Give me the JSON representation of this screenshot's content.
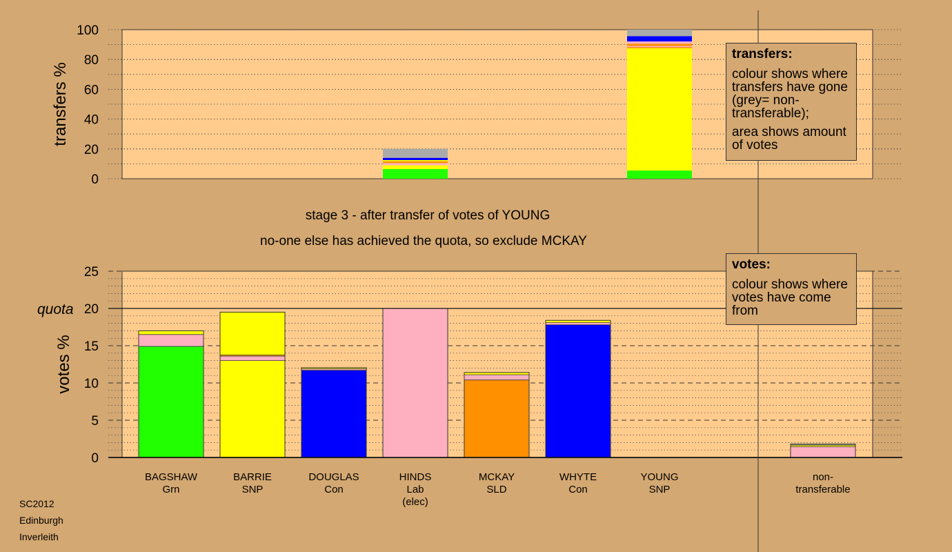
{
  "chart_data": [
    {
      "type": "bar",
      "stacked": true,
      "ylabel": "transfers %",
      "ylim": [
        0,
        100
      ],
      "yticks": [
        0,
        20,
        40,
        60,
        80,
        100
      ],
      "grid": "dotted",
      "colors": {
        "Grn": "#22ff00",
        "SNP": "#ffff00",
        "Con": "#0000ff",
        "Lab": "#ffb0c0",
        "SLD": "#ff9000",
        "non-transferable": "#aaaaaa"
      },
      "bars": [
        {
          "candidate": "HINDS",
          "segments": [
            {
              "party": "Grn",
              "value": 6.5
            },
            {
              "party": "SNP",
              "value": 2.5
            },
            {
              "party": "Lab",
              "value": 1.5
            },
            {
              "party": "SLD",
              "value": 1.2
            },
            {
              "party": "SNP",
              "value": 0.8
            },
            {
              "party": "Con",
              "value": 1.5
            },
            {
              "party": "non-transferable",
              "value": 6.0
            }
          ]
        },
        {
          "candidate": "YOUNG",
          "segments": [
            {
              "party": "Grn",
              "value": 5.5
            },
            {
              "party": "SNP",
              "value": 82.0
            },
            {
              "party": "SLD",
              "value": 0.8
            },
            {
              "party": "Lab",
              "value": 0.8
            },
            {
              "party": "SLD",
              "value": 1.5
            },
            {
              "party": "Lab",
              "value": 1.5
            },
            {
              "party": "Con",
              "value": 3.5
            },
            {
              "party": "non-transferable",
              "value": 4.4
            }
          ]
        }
      ]
    },
    {
      "type": "bar",
      "stacked": true,
      "ylabel": "votes %",
      "ylim": [
        0,
        25
      ],
      "yticks": [
        0,
        5,
        10,
        15,
        20,
        25
      ],
      "quota": 20,
      "quota_label": "quota",
      "grid": "dashed",
      "candidates": [
        {
          "name": "BAGSHAW",
          "party": "Grn",
          "segments": [
            {
              "party": "Grn",
              "value": 14.9
            },
            {
              "party": "Lab",
              "value": 1.6
            },
            {
              "party": "SNP",
              "value": 0.5
            }
          ]
        },
        {
          "name": "BARRIE",
          "party": "SNP",
          "segments": [
            {
              "party": "SNP",
              "value": 13.0
            },
            {
              "party": "Lab",
              "value": 0.6
            },
            {
              "party": "SLD",
              "value": 0.15
            },
            {
              "party": "SNP",
              "value": 5.75
            }
          ]
        },
        {
          "name": "DOUGLAS",
          "party": "Con",
          "segments": [
            {
              "party": "Con",
              "value": 11.7
            },
            {
              "party": "Lab",
              "value": 0.2
            },
            {
              "party": "SNP",
              "value": 0.15
            }
          ]
        },
        {
          "name": "HINDS",
          "party": "Lab",
          "note": "(elec)",
          "segments": [
            {
              "party": "Lab",
              "value": 20.0
            }
          ]
        },
        {
          "name": "MCKAY",
          "party": "SLD",
          "segments": [
            {
              "party": "SLD",
              "value": 10.4
            },
            {
              "party": "Lab",
              "value": 0.7
            },
            {
              "party": "SNP",
              "value": 0.3
            }
          ]
        },
        {
          "name": "WHYTE",
          "party": "Con",
          "segments": [
            {
              "party": "Con",
              "value": 17.8
            },
            {
              "party": "Lab",
              "value": 0.3
            },
            {
              "party": "SNP",
              "value": 0.3
            }
          ]
        },
        {
          "name": "YOUNG",
          "party": "SNP",
          "segments": []
        },
        {
          "name": "non-\ntransferable",
          "party": "",
          "segments": [
            {
              "party": "Lab",
              "value": 1.45
            },
            {
              "party": "SNP",
              "value": 0.2
            },
            {
              "party": "non-transferable",
              "value": 0.15
            }
          ]
        }
      ]
    }
  ],
  "headline": {
    "stage": "stage 3 - after transfer of votes of YOUNG",
    "action": "no-one else has achieved the quota, so exclude MCKAY"
  },
  "legend_transfers": {
    "title": "transfers:",
    "p1": "colour shows where transfers have gone (grey= non-transferable);",
    "p2": "area shows amount of votes"
  },
  "legend_votes": {
    "title": "votes:",
    "p1": "colour shows where votes have come from"
  },
  "footer": {
    "election": "SC2012",
    "council": "Edinburgh",
    "ward": "Inverleith"
  }
}
